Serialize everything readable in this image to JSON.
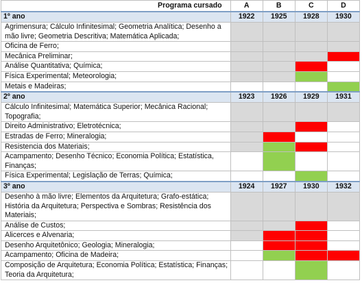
{
  "header": {
    "label": "Programa cursado",
    "columns": [
      "A",
      "B",
      "C",
      "D"
    ]
  },
  "sections": [
    {
      "title": "1º ano",
      "years": [
        "1922",
        "1925",
        "1928",
        "1930"
      ],
      "rows": [
        {
          "subjects": "Agrimensura; Cálculo Infinitesimal; Geometria Analítica; Desenho a mão livre; Geometria Descritiva; Matemática Aplicada;",
          "cells": [
            "#d9d9d9",
            "#d9d9d9",
            "#d9d9d9",
            "#d9d9d9"
          ]
        },
        {
          "subjects": "Oficina de Ferro;",
          "cells": [
            "#d9d9d9",
            "#d9d9d9",
            "#d9d9d9",
            "#d9d9d9"
          ]
        },
        {
          "subjects": "Mecânica Preliminar;",
          "cells": [
            "#d9d9d9",
            "#d9d9d9",
            "#d9d9d9",
            "#ff0000"
          ]
        },
        {
          "subjects": "Análise Quantitativa; Química;",
          "cells": [
            "#d9d9d9",
            "#d9d9d9",
            "#ff0000",
            "#ffffff"
          ]
        },
        {
          "subjects": "Física Experimental; Meteorologia;",
          "cells": [
            "#d9d9d9",
            "#d9d9d9",
            "#92d050",
            "#ffffff"
          ]
        },
        {
          "subjects": "Metais e Madeiras;",
          "cells": [
            "#ffffff",
            "#ffffff",
            "#ffffff",
            "#92d050"
          ]
        }
      ]
    },
    {
      "title": "2º ano",
      "years": [
        "1923",
        "1926",
        "1929",
        "1931"
      ],
      "rows": [
        {
          "subjects": "Cálculo Infinitesimal; Matemática Superior; Mecânica Racional; Topografia;",
          "cells": [
            "#d9d9d9",
            "#d9d9d9",
            "#d9d9d9",
            "#d9d9d9"
          ]
        },
        {
          "subjects": "Direito Administrativo; Eletrotécnica;",
          "cells": [
            "#d9d9d9",
            "#d9d9d9",
            "#ff0000",
            "#ffffff"
          ]
        },
        {
          "subjects": "Estradas de Ferro; Mineralogia;",
          "cells": [
            "#d9d9d9",
            "#ff0000",
            "#ffffff",
            "#ffffff"
          ]
        },
        {
          "subjects": "Resistencia dos Materiais;",
          "cells": [
            "#d9d9d9",
            "#92d050",
            "#ff0000",
            "#ffffff"
          ]
        },
        {
          "subjects": "Acampamento; Desenho Técnico; Economia Política; Estatística, Finanças;",
          "cells": [
            "#ffffff",
            "#92d050",
            "#ffffff",
            "#ffffff"
          ]
        },
        {
          "subjects": "Física Experimental; Legislação de Terras; Química;",
          "cells": [
            "#ffffff",
            "#ffffff",
            "#92d050",
            "#ffffff"
          ]
        }
      ]
    },
    {
      "title": "3º ano",
      "years": [
        "1924",
        "1927",
        "1930",
        "1932"
      ],
      "rows": [
        {
          "subjects": "Desenho à mão livre; Elementos da Arquitetura; Grafo-estática; História da Arquitetura; Perspectiva e Sombras; Resistência dos Materiais;",
          "cells": [
            "#d9d9d9",
            "#d9d9d9",
            "#d9d9d9",
            "#d9d9d9"
          ]
        },
        {
          "subjects": "Análise de Custos;",
          "cells": [
            "#d9d9d9",
            "#d9d9d9",
            "#ff0000",
            "#ffffff"
          ]
        },
        {
          "subjects": "Alicerces e Alvenaria;",
          "cells": [
            "#d9d9d9",
            "#ff0000",
            "#ff0000",
            "#ffffff"
          ]
        },
        {
          "subjects": "Desenho Arquitetônico; Geologia; Mineralogia;",
          "cells": [
            "#ffffff",
            "#ff0000",
            "#ff0000",
            "#ffffff"
          ]
        },
        {
          "subjects": "Acampamento; Oficina de Madeira;",
          "cells": [
            "#ffffff",
            "#92d050",
            "#ff0000",
            "#ff0000"
          ]
        },
        {
          "subjects": "Composição de Arquitetura; Economia Política; Estatística; Finanças; Teoria da Arquitetura;",
          "cells": [
            "#ffffff",
            "#ffffff",
            "#92d050",
            "#ffffff"
          ]
        }
      ]
    }
  ]
}
